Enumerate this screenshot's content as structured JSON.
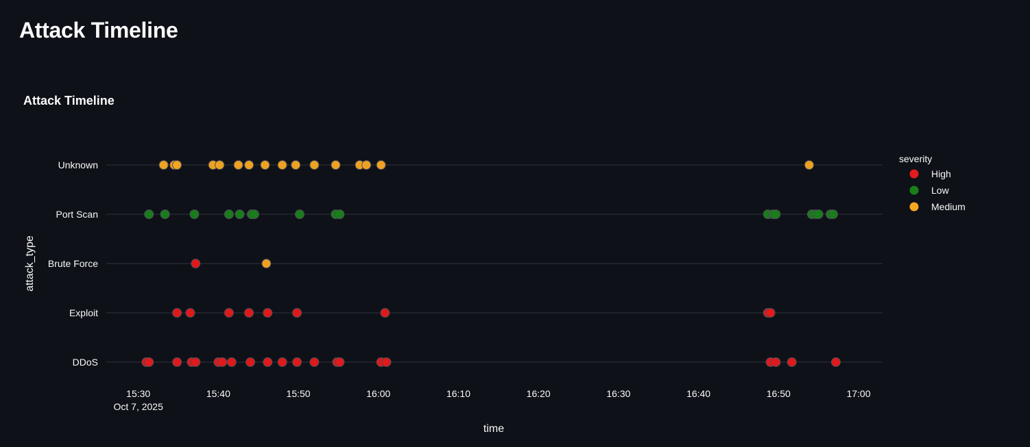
{
  "page": {
    "title": "Attack Timeline"
  },
  "colors": {
    "background": "#0e1117",
    "grid": "#31333f",
    "text": "#fafafa",
    "High": "#e41a1c",
    "Low": "#1a7f1a",
    "Medium": "#f5a623"
  },
  "chart_data": {
    "type": "scatter",
    "title": "Attack Timeline",
    "xlabel": "time",
    "ylabel": "attack_type",
    "categories": [
      "DDoS",
      "Exploit",
      "Brute Force",
      "Port Scan",
      "Unknown"
    ],
    "x_ticks": [
      "15:30",
      "15:40",
      "15:50",
      "16:00",
      "16:10",
      "16:20",
      "16:30",
      "16:40",
      "16:50",
      "17:00"
    ],
    "x_date_label": "Oct 7, 2025",
    "xlim": [
      "2025-10-07 15:26",
      "2025-10-07 17:03"
    ],
    "grid": true,
    "legend": {
      "title": "severity",
      "entries": [
        "High",
        "Low",
        "Medium"
      ],
      "placement": "right"
    },
    "series": [
      {
        "name": "High",
        "points": [
          {
            "x": "15:31:00",
            "y": "DDoS"
          },
          {
            "x": "15:31:20",
            "y": "DDoS"
          },
          {
            "x": "15:34:50",
            "y": "DDoS"
          },
          {
            "x": "15:36:40",
            "y": "DDoS"
          },
          {
            "x": "15:37:10",
            "y": "DDoS"
          },
          {
            "x": "15:40:00",
            "y": "DDoS"
          },
          {
            "x": "15:40:30",
            "y": "DDoS"
          },
          {
            "x": "15:41:40",
            "y": "DDoS"
          },
          {
            "x": "15:44:00",
            "y": "DDoS"
          },
          {
            "x": "15:46:10",
            "y": "DDoS"
          },
          {
            "x": "15:48:00",
            "y": "DDoS"
          },
          {
            "x": "15:49:50",
            "y": "DDoS"
          },
          {
            "x": "15:52:00",
            "y": "DDoS"
          },
          {
            "x": "15:54:50",
            "y": "DDoS"
          },
          {
            "x": "15:55:10",
            "y": "DDoS"
          },
          {
            "x": "16:00:20",
            "y": "DDoS"
          },
          {
            "x": "16:01:00",
            "y": "DDoS"
          },
          {
            "x": "16:49:00",
            "y": "DDoS"
          },
          {
            "x": "16:49:40",
            "y": "DDoS"
          },
          {
            "x": "16:51:40",
            "y": "DDoS"
          },
          {
            "x": "16:57:10",
            "y": "DDoS"
          },
          {
            "x": "15:34:50",
            "y": "Exploit"
          },
          {
            "x": "15:36:30",
            "y": "Exploit"
          },
          {
            "x": "15:41:20",
            "y": "Exploit"
          },
          {
            "x": "15:43:50",
            "y": "Exploit"
          },
          {
            "x": "15:46:10",
            "y": "Exploit"
          },
          {
            "x": "15:49:50",
            "y": "Exploit"
          },
          {
            "x": "16:00:50",
            "y": "Exploit"
          },
          {
            "x": "16:48:40",
            "y": "Exploit"
          },
          {
            "x": "16:49:00",
            "y": "Exploit"
          },
          {
            "x": "15:37:10",
            "y": "Brute Force"
          }
        ]
      },
      {
        "name": "Low",
        "points": [
          {
            "x": "15:31:20",
            "y": "Port Scan"
          },
          {
            "x": "15:33:20",
            "y": "Port Scan"
          },
          {
            "x": "15:37:00",
            "y": "Port Scan"
          },
          {
            "x": "15:41:20",
            "y": "Port Scan"
          },
          {
            "x": "15:42:40",
            "y": "Port Scan"
          },
          {
            "x": "15:44:10",
            "y": "Port Scan"
          },
          {
            "x": "15:44:30",
            "y": "Port Scan"
          },
          {
            "x": "15:50:10",
            "y": "Port Scan"
          },
          {
            "x": "15:54:40",
            "y": "Port Scan"
          },
          {
            "x": "15:55:10",
            "y": "Port Scan"
          },
          {
            "x": "16:48:40",
            "y": "Port Scan"
          },
          {
            "x": "16:49:20",
            "y": "Port Scan"
          },
          {
            "x": "16:49:40",
            "y": "Port Scan"
          },
          {
            "x": "16:54:10",
            "y": "Port Scan"
          },
          {
            "x": "16:54:40",
            "y": "Port Scan"
          },
          {
            "x": "16:55:00",
            "y": "Port Scan"
          },
          {
            "x": "16:56:30",
            "y": "Port Scan"
          },
          {
            "x": "16:56:50",
            "y": "Port Scan"
          }
        ]
      },
      {
        "name": "Medium",
        "points": [
          {
            "x": "15:46:00",
            "y": "Brute Force"
          },
          {
            "x": "15:33:10",
            "y": "Unknown"
          },
          {
            "x": "15:34:30",
            "y": "Unknown"
          },
          {
            "x": "15:34:50",
            "y": "Unknown"
          },
          {
            "x": "15:39:20",
            "y": "Unknown"
          },
          {
            "x": "15:40:10",
            "y": "Unknown"
          },
          {
            "x": "15:42:30",
            "y": "Unknown"
          },
          {
            "x": "15:43:50",
            "y": "Unknown"
          },
          {
            "x": "15:45:50",
            "y": "Unknown"
          },
          {
            "x": "15:48:00",
            "y": "Unknown"
          },
          {
            "x": "15:49:40",
            "y": "Unknown"
          },
          {
            "x": "15:52:00",
            "y": "Unknown"
          },
          {
            "x": "15:54:40",
            "y": "Unknown"
          },
          {
            "x": "15:57:40",
            "y": "Unknown"
          },
          {
            "x": "15:58:30",
            "y": "Unknown"
          },
          {
            "x": "16:00:20",
            "y": "Unknown"
          },
          {
            "x": "16:53:50",
            "y": "Unknown"
          }
        ]
      }
    ]
  }
}
